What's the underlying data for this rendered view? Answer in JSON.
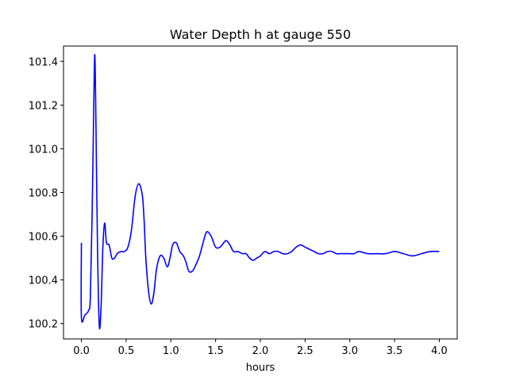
{
  "chart_data": {
    "type": "line",
    "title": "Water Depth h at gauge 550",
    "xlabel": "hours",
    "ylabel": "",
    "xlim": [
      -0.2,
      4.2
    ],
    "ylim": [
      100.13,
      101.47
    ],
    "xticks": [
      0.0,
      0.5,
      1.0,
      1.5,
      2.0,
      2.5,
      3.0,
      3.5,
      4.0
    ],
    "xtick_labels": [
      "0.0",
      "0.5",
      "1.0",
      "1.5",
      "2.0",
      "2.5",
      "3.0",
      "3.5",
      "4.0"
    ],
    "yticks": [
      100.2,
      100.4,
      100.6,
      100.8,
      101.0,
      101.2,
      101.4
    ],
    "ytick_labels": [
      "100.2",
      "100.4",
      "100.6",
      "100.8",
      "101.0",
      "101.2",
      "101.4"
    ],
    "grid": false,
    "series": [
      {
        "color": "#0000ff",
        "x": [
          0.0,
          0.0,
          0.04,
          0.08,
          0.1,
          0.12,
          0.14,
          0.15,
          0.16,
          0.18,
          0.2,
          0.22,
          0.24,
          0.26,
          0.28,
          0.31,
          0.34,
          0.37,
          0.4,
          0.44,
          0.48,
          0.52,
          0.56,
          0.6,
          0.64,
          0.68,
          0.7,
          0.72,
          0.75,
          0.78,
          0.81,
          0.84,
          0.88,
          0.92,
          0.96,
          0.99,
          1.02,
          1.06,
          1.1,
          1.14,
          1.17,
          1.2,
          1.24,
          1.28,
          1.32,
          1.36,
          1.4,
          1.45,
          1.5,
          1.55,
          1.59,
          1.62,
          1.66,
          1.7,
          1.75,
          1.8,
          1.84,
          1.88,
          1.92,
          1.96,
          2.0,
          2.05,
          2.1,
          2.15,
          2.2,
          2.25,
          2.3,
          2.35,
          2.4,
          2.45,
          2.5,
          2.55,
          2.6,
          2.65,
          2.7,
          2.75,
          2.8,
          2.85,
          2.9,
          2.95,
          3.0,
          3.05,
          3.1,
          3.2,
          3.3,
          3.4,
          3.5,
          3.6,
          3.7,
          3.8,
          3.9,
          4.0
        ],
        "y": [
          100.57,
          100.23,
          100.24,
          100.26,
          100.32,
          100.7,
          101.25,
          101.43,
          101.2,
          100.55,
          100.19,
          100.28,
          100.55,
          100.66,
          100.57,
          100.56,
          100.5,
          100.5,
          100.52,
          100.53,
          100.53,
          100.55,
          100.63,
          100.78,
          100.84,
          100.79,
          100.68,
          100.5,
          100.35,
          100.29,
          100.34,
          100.45,
          100.51,
          100.5,
          100.46,
          100.5,
          100.56,
          100.57,
          100.53,
          100.51,
          100.48,
          100.44,
          100.44,
          100.47,
          100.51,
          100.57,
          100.62,
          100.6,
          100.55,
          100.55,
          100.57,
          100.58,
          100.56,
          100.53,
          100.53,
          100.52,
          100.52,
          100.5,
          100.49,
          100.5,
          100.51,
          100.53,
          100.52,
          100.53,
          100.53,
          100.52,
          100.52,
          100.53,
          100.55,
          100.56,
          100.55,
          100.54,
          100.53,
          100.52,
          100.52,
          100.53,
          100.53,
          100.52,
          100.52,
          100.52,
          100.52,
          100.52,
          100.53,
          100.52,
          100.52,
          100.52,
          100.53,
          100.52,
          100.51,
          100.52,
          100.53,
          100.53
        ]
      }
    ]
  }
}
